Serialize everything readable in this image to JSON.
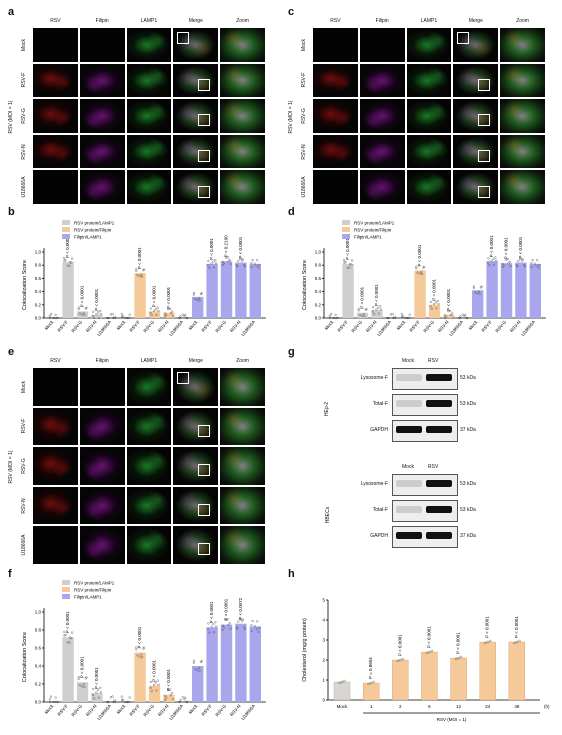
{
  "panel_labels": {
    "a": "a",
    "b": "b",
    "c": "c",
    "d": "d",
    "e": "e",
    "f": "f",
    "g": "g",
    "h": "h"
  },
  "micro_headers": [
    "RSV",
    "Filipin",
    "LAMP1",
    "Merge",
    "Zoom"
  ],
  "micro_rows": [
    "Mock",
    "RSV-F",
    "RSV-G",
    "RSV-N",
    "U18666A"
  ],
  "moi_label": "RSV (MOI = 1)",
  "colocalization": {
    "ylabel": "Colocalization Score",
    "yticks": [
      "0.0",
      "0.2",
      "0.4",
      "0.6",
      "0.8",
      "1.0"
    ],
    "legend_bf": [
      "RSV protein/LAMP1",
      "RSV protein/Filipin",
      "Filipin/LAMP1"
    ],
    "legend_d": [
      "RSV protein/LAMP1",
      "RSV protein/Filipin",
      "Filipin/LAMP1"
    ],
    "legend_f": [
      "RSV protein/LAMP1",
      "RSV protein/Filipin",
      "Filipin/LAMP1"
    ],
    "xcats": [
      "Mock",
      "RSV-F",
      "RSV-G",
      "RSV-N",
      "U18666A"
    ],
    "colors": {
      "lamp": "#cfcfcf",
      "filipin": "#f6c99a",
      "fl": "#a9a6ee"
    }
  },
  "chart_data": [
    {
      "type": "bar",
      "panel": "b",
      "ylabel": "Colocalization Score",
      "ylim": [
        0,
        1
      ],
      "categories": [
        "Mock",
        "RSV-F",
        "RSV-G",
        "RSV-N",
        "U18666A"
      ],
      "series": [
        {
          "name": "RSV protein/LAMP1",
          "values": [
            0,
            0.85,
            0.1,
            0.05,
            0
          ]
        },
        {
          "name": "RSV protein/Filipin",
          "values": [
            0,
            0.68,
            0.1,
            0.08,
            0
          ]
        },
        {
          "name": "Filipin/LAMP1",
          "values": [
            0.32,
            0.82,
            0.86,
            0.84,
            0.82
          ]
        }
      ],
      "annotations": [
        "P < 0.0001",
        "P < 0.0001",
        "P < 0.0001",
        "P < 0.0001",
        "P < 0.0001",
        "P < 0.0001",
        "P < 0.0001",
        "P = 0.2190",
        "P < 0.0001"
      ]
    },
    {
      "type": "bar",
      "panel": "d",
      "ylabel": "Colocalization Score",
      "ylim": [
        0,
        1
      ],
      "categories": [
        "Mock",
        "RSV-F",
        "RSV-G",
        "RSV-N",
        "U18666A"
      ],
      "series": [
        {
          "name": "RSV protein/LAMP1",
          "values": [
            0,
            0.82,
            0.08,
            0.12,
            0
          ]
        },
        {
          "name": "RSV protein/Filipin",
          "values": [
            0,
            0.72,
            0.2,
            0.05,
            0
          ]
        },
        {
          "name": "Filipin/LAMP1",
          "values": [
            0.42,
            0.86,
            0.83,
            0.84,
            0.82
          ]
        }
      ],
      "annotations": [
        "P < 0.0001",
        "P < 0.0001",
        "P < 0.0001",
        "P < 0.0001",
        "P < 0.0001",
        "P < 0.0001",
        "P < 0.0001",
        "P < 0.0001",
        "P < 0.0001"
      ]
    },
    {
      "type": "bar",
      "panel": "f",
      "ylabel": "Colocalization Score",
      "ylim": [
        0,
        1
      ],
      "categories": [
        "Mock",
        "RSV-F",
        "RSV-G",
        "RSV-N",
        "U18666A"
      ],
      "series": [
        {
          "name": "RSV protein/LAMP1",
          "values": [
            0,
            0.72,
            0.22,
            0.1,
            0
          ]
        },
        {
          "name": "RSV protein/Filipin",
          "values": [
            0,
            0.55,
            0.18,
            0.08,
            0
          ]
        },
        {
          "name": "Filipin/LAMP1",
          "values": [
            0.4,
            0.83,
            0.86,
            0.87,
            0.84
          ]
        }
      ],
      "annotations": [
        "P < 0.0001",
        "P < 0.0001",
        "P < 0.0001",
        "P < 0.0001",
        "P < 0.0001",
        "P < 0.0001",
        "P < 0.0001",
        "P < 0.0001",
        "P < 0.0072"
      ]
    },
    {
      "type": "bar",
      "panel": "h",
      "ylabel": "Cholesterol (mg/g protein)",
      "ylim": [
        0,
        5
      ],
      "categories": [
        "Mock",
        "1",
        "2",
        "6",
        "12",
        "24",
        "48"
      ],
      "values": [
        0.9,
        0.85,
        2.0,
        2.4,
        2.1,
        2.9,
        2.9
      ],
      "xunit": "(h)",
      "xlabel": "RSV (MOI = 1)",
      "annotations": [
        "P = 0.8604",
        "P < 0.0001",
        "P < 0.0001",
        "P < 0.0001",
        "P < 0.0001",
        "P < 0.0001"
      ]
    }
  ],
  "blot": {
    "top_cell": "HEp-2",
    "bottom_cell": "HBECs",
    "lanes": [
      "Mock",
      "RSV"
    ],
    "rows": [
      "Lysosome-F",
      "Total-F",
      "GAPDH"
    ],
    "kda": [
      "53 kDa",
      "53 kDa",
      "37 kDa"
    ]
  },
  "h_yticks": [
    "0",
    "1",
    "2",
    "3",
    "4",
    "5"
  ]
}
